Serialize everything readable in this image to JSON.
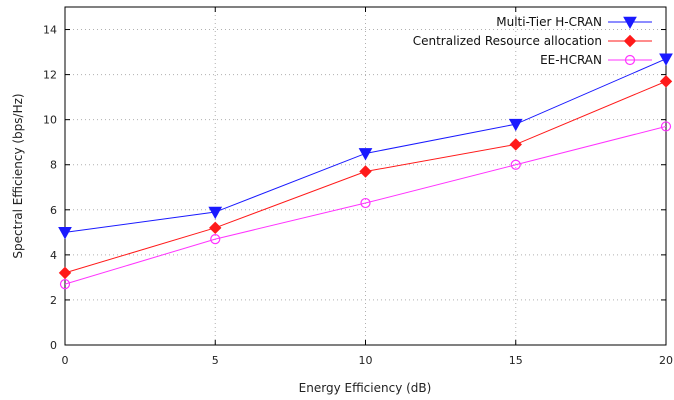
{
  "chart_data": {
    "type": "line",
    "title": "",
    "xlabel": "Energy Efficiency (dB)",
    "ylabel": "Spectral Efficiency (bps/Hz)",
    "x": [
      0,
      5,
      10,
      15,
      20
    ],
    "xlim": [
      0,
      20
    ],
    "ylim": [
      0,
      15
    ],
    "xticks": [
      0,
      5,
      10,
      15,
      20
    ],
    "yticks": [
      0,
      2,
      4,
      6,
      8,
      10,
      12,
      14
    ],
    "grid": true,
    "legend_position": "top-right",
    "series": [
      {
        "name": "Multi-Tier H-CRAN",
        "values": [
          5.0,
          5.9,
          8.5,
          9.8,
          12.7
        ],
        "color": "#1a1aff",
        "marker": "triangle-down-filled"
      },
      {
        "name": "Centralized Resource allocation",
        "values": [
          3.2,
          5.2,
          7.7,
          8.9,
          11.7
        ],
        "color": "#ff1a1a",
        "marker": "diamond-filled"
      },
      {
        "name": "EE-HCRAN",
        "values": [
          2.7,
          4.7,
          6.3,
          8.0,
          9.7
        ],
        "color": "#ff33ff",
        "marker": "circle-open"
      }
    ]
  }
}
